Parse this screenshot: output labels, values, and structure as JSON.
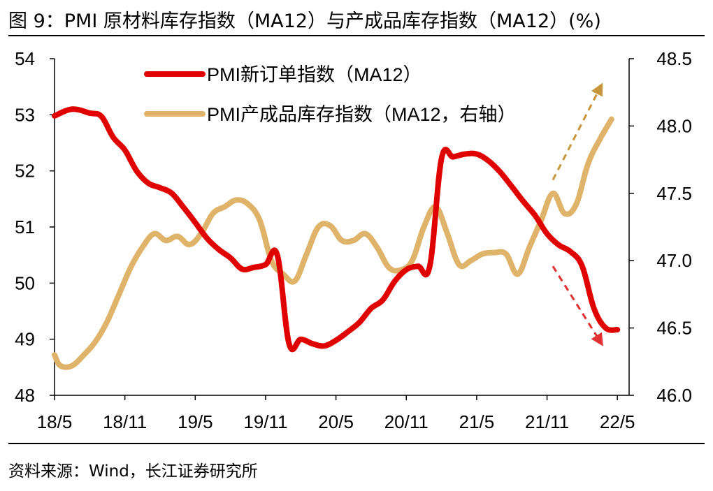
{
  "figure": {
    "title": "图 9：PMI 原材料库存指数（MA12）与产成品库存指数（MA12）(%)",
    "source": "资料来源：Wind，长江证券研究所"
  },
  "colors": {
    "series_left": "#e00000",
    "series_right": "#e0b36a",
    "arrow_up": "#c8963a",
    "arrow_down": "#e03030"
  },
  "chart_data": {
    "type": "line",
    "title": "PMI 原材料库存指数（MA12）与产成品库存指数（MA12）(%)",
    "x_tick_labels": [
      "18/5",
      "18/11",
      "19/5",
      "19/11",
      "20/5",
      "20/11",
      "21/5",
      "21/11",
      "22/5"
    ],
    "x_range": [
      0,
      49
    ],
    "y_left": {
      "range": [
        48,
        54
      ],
      "ticks": [
        "48",
        "49",
        "50",
        "51",
        "52",
        "53",
        "54"
      ]
    },
    "y_right": {
      "range": [
        46.0,
        48.5
      ],
      "ticks": [
        "46.0",
        "46.5",
        "47.0",
        "47.5",
        "48.0",
        "48.5"
      ]
    },
    "legend_position": "top-center",
    "series": [
      {
        "name": "PMI新订单指数（MA12）",
        "axis": "left",
        "points": [
          [
            0,
            52.98
          ],
          [
            1.5,
            53.1
          ],
          [
            3,
            53.03
          ],
          [
            4,
            52.97
          ],
          [
            5,
            52.6
          ],
          [
            6,
            52.37
          ],
          [
            7,
            52.0
          ],
          [
            8,
            51.78
          ],
          [
            9,
            51.7
          ],
          [
            10,
            51.6
          ],
          [
            11,
            51.35
          ],
          [
            12,
            51.08
          ],
          [
            13,
            50.8
          ],
          [
            14,
            50.6
          ],
          [
            15,
            50.45
          ],
          [
            16,
            50.25
          ],
          [
            17,
            50.28
          ],
          [
            18,
            50.33
          ],
          [
            19,
            50.5
          ],
          [
            20,
            48.92
          ],
          [
            21,
            49.0
          ],
          [
            22,
            48.92
          ],
          [
            23,
            48.88
          ],
          [
            24,
            48.98
          ],
          [
            25,
            49.13
          ],
          [
            26,
            49.3
          ],
          [
            27,
            49.55
          ],
          [
            28,
            49.7
          ],
          [
            29,
            50.03
          ],
          [
            30,
            50.24
          ],
          [
            31,
            50.3
          ],
          [
            32,
            50.3
          ],
          [
            33,
            52.22
          ],
          [
            34,
            52.25
          ],
          [
            35,
            52.3
          ],
          [
            36,
            52.3
          ],
          [
            37,
            52.18
          ],
          [
            38,
            51.98
          ],
          [
            39,
            51.72
          ],
          [
            40,
            51.45
          ],
          [
            41,
            51.2
          ],
          [
            42,
            50.88
          ],
          [
            43,
            50.68
          ],
          [
            44,
            50.56
          ],
          [
            45,
            50.3
          ],
          [
            46,
            49.55
          ],
          [
            47,
            49.2
          ],
          [
            48,
            49.17
          ]
        ]
      },
      {
        "name": "PMI产成品库存指数（MA12，右轴）",
        "axis": "right",
        "points": [
          [
            0,
            46.3
          ],
          [
            0.5,
            46.22
          ],
          [
            1.5,
            46.22
          ],
          [
            2.5,
            46.3
          ],
          [
            3.5,
            46.4
          ],
          [
            4.5,
            46.55
          ],
          [
            5.5,
            46.75
          ],
          [
            6.5,
            46.95
          ],
          [
            7.5,
            47.1
          ],
          [
            8.5,
            47.2
          ],
          [
            9.5,
            47.15
          ],
          [
            10.5,
            47.18
          ],
          [
            11.5,
            47.12
          ],
          [
            12.5,
            47.2
          ],
          [
            13.5,
            47.35
          ],
          [
            14.5,
            47.4
          ],
          [
            15.5,
            47.45
          ],
          [
            16.5,
            47.42
          ],
          [
            17.5,
            47.3
          ],
          [
            18.5,
            47.0
          ],
          [
            19.5,
            46.9
          ],
          [
            20.5,
            46.85
          ],
          [
            21.5,
            47.05
          ],
          [
            22.5,
            47.25
          ],
          [
            23.5,
            47.26
          ],
          [
            24.5,
            47.15
          ],
          [
            25.5,
            47.15
          ],
          [
            26.5,
            47.2
          ],
          [
            27.5,
            47.1
          ],
          [
            28.5,
            46.95
          ],
          [
            29.5,
            46.93
          ],
          [
            30.5,
            47.0
          ],
          [
            31.5,
            47.25
          ],
          [
            32.5,
            47.4
          ],
          [
            33.5,
            47.2
          ],
          [
            34.5,
            46.97
          ],
          [
            35.5,
            47.0
          ],
          [
            36.5,
            47.05
          ],
          [
            37.5,
            47.06
          ],
          [
            38.5,
            47.05
          ],
          [
            39.5,
            46.9
          ],
          [
            40.5,
            47.1
          ],
          [
            41.5,
            47.3
          ],
          [
            42.5,
            47.5
          ],
          [
            43.5,
            47.35
          ],
          [
            44.5,
            47.42
          ],
          [
            45.5,
            47.72
          ],
          [
            46.5,
            47.9
          ],
          [
            47.5,
            48.05
          ]
        ]
      }
    ],
    "annotations": [
      {
        "type": "trend-arrow",
        "direction": "up",
        "series": "right",
        "from": [
          42.5,
          47.6
        ],
        "to": [
          46.5,
          48.28
        ]
      },
      {
        "type": "trend-arrow",
        "direction": "down",
        "series": "left",
        "from": [
          42.5,
          50.3
        ],
        "to": [
          46.5,
          48.97
        ]
      }
    ]
  }
}
